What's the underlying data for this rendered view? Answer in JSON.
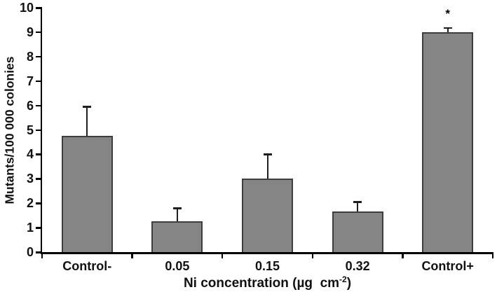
{
  "figure": {
    "background": "#ffffff"
  },
  "chart_data": {
    "type": "bar",
    "categories": [
      "Control-",
      "0.05",
      "0.15",
      "0.32",
      "Control+"
    ],
    "values": [
      4.75,
      1.25,
      3.0,
      1.65,
      9.0
    ],
    "error_upper": [
      1.2,
      0.55,
      1.0,
      0.4,
      0.18
    ],
    "title": "",
    "xlabel": "Ni concentration (µg cm⁻²)",
    "xlabel_parts": {
      "prefix": "Ni concentration (µg  cm",
      "sup": "-2",
      "suffix": ")"
    },
    "ylabel": "Mutants/100 000 colonies",
    "ylim": [
      0,
      10
    ],
    "yticks": [
      0,
      1,
      2,
      3,
      4,
      5,
      6,
      7,
      8,
      9,
      10
    ],
    "grid": false,
    "legend": "none",
    "annotations": [
      {
        "text": "*",
        "category": "Control+"
      }
    ],
    "colors": {
      "bar_fill": "#858585",
      "bar_border": "#3d3d3d",
      "axis": "#000000",
      "error_bar": "#1f1f1f"
    }
  }
}
